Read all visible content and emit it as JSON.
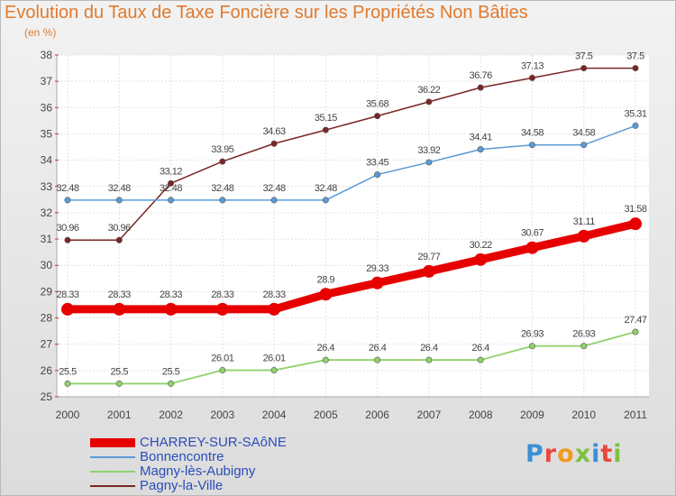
{
  "header": {
    "title": "Evolution du Taux de Taxe Foncière sur les Propriétés Non Bâties",
    "subtitle": "(en %)"
  },
  "logo": {
    "text": "Proxiti",
    "letter_colors": [
      "#3b8fd6",
      "#e8483c",
      "#f29a1b",
      "#7cc142",
      "#3b8fd6",
      "#e8483c",
      "#7cc142"
    ]
  },
  "chart_data": {
    "type": "line",
    "x": [
      "2000",
      "2001",
      "2002",
      "2003",
      "2004",
      "2005",
      "2006",
      "2007",
      "2008",
      "2009",
      "2010",
      "2011"
    ],
    "ylim": [
      25,
      38
    ],
    "yticks": [
      25,
      26,
      27,
      28,
      29,
      30,
      31,
      32,
      33,
      34,
      35,
      36,
      37,
      38
    ],
    "grid": true,
    "series": [
      {
        "name": "CHARREY-SUR-SAôNE",
        "color": "#e60000",
        "values": [
          28.33,
          28.33,
          28.33,
          28.33,
          28.33,
          28.9,
          29.33,
          29.77,
          30.22,
          30.67,
          31.11,
          31.58
        ],
        "labels": [
          "28.33",
          "28.33",
          "28.33",
          "28.33",
          "28.33",
          "28.9",
          "29.33",
          "29.77",
          "30.22",
          "30.67",
          "31.11",
          "31.58"
        ]
      },
      {
        "name": "Bonnencontre",
        "color": "#5b9bd5",
        "values": [
          32.48,
          32.48,
          32.48,
          32.48,
          32.48,
          32.48,
          33.45,
          33.92,
          34.41,
          34.58,
          34.58,
          35.31
        ],
        "labels": [
          "32.48",
          "32.48",
          "32.48",
          "32.48",
          "32.48",
          "32.48",
          "33.45",
          "33.92",
          "34.41",
          "34.58",
          "34.58",
          "35.31"
        ]
      },
      {
        "name": "Magny-lès-Aubigny",
        "color": "#8fd16a",
        "values": [
          25.5,
          25.5,
          25.5,
          26.01,
          26.01,
          26.4,
          26.4,
          26.4,
          26.4,
          26.93,
          26.93,
          27.47
        ],
        "labels": [
          "25.5",
          "25.5",
          "25.5",
          "26.01",
          "26.01",
          "26.4",
          "26.4",
          "26.4",
          "26.4",
          "26.93",
          "26.93",
          "27.47"
        ]
      },
      {
        "name": "Pagny-la-Ville",
        "color": "#7a2626",
        "values": [
          30.96,
          30.96,
          33.12,
          33.95,
          34.63,
          35.15,
          35.68,
          36.22,
          36.76,
          37.13,
          37.5,
          37.5
        ],
        "labels": [
          "30.96",
          "30.96",
          "33.12",
          "33.95",
          "34.63",
          "35.15",
          "35.68",
          "36.22",
          "36.76",
          "37.13",
          "37.5",
          "37.5"
        ]
      }
    ]
  }
}
